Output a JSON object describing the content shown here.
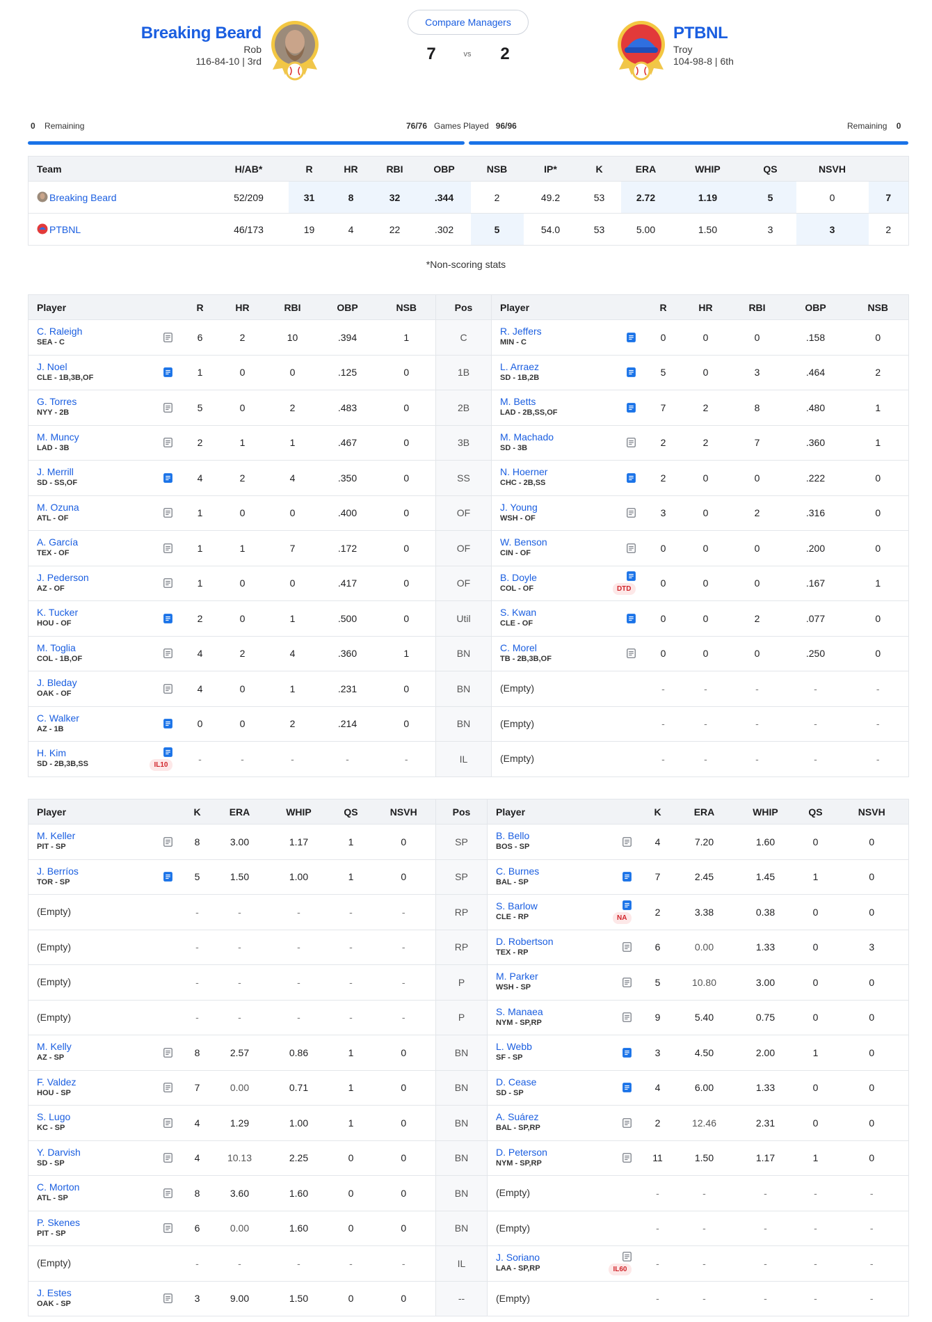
{
  "header": {
    "compare_label": "Compare Managers",
    "vs_label": "vs",
    "left": {
      "name": "Breaking Beard",
      "manager": "Rob",
      "record": "116-84-10 | 3rd",
      "score": "7"
    },
    "right": {
      "name": "PTBNL",
      "manager": "Troy",
      "record": "104-98-8 | 6th",
      "score": "2"
    }
  },
  "games": {
    "left_remaining_count": "0",
    "left_remaining_label": "Remaining",
    "left_played": "76/76",
    "games_played_label": "Games Played",
    "right_played": "96/96",
    "right_remaining_label": "Remaining",
    "right_remaining_count": "0"
  },
  "summary": {
    "headers": [
      "Team",
      "H/AB*",
      "R",
      "HR",
      "RBI",
      "OBP",
      "NSB",
      "IP*",
      "K",
      "ERA",
      "WHIP",
      "QS",
      "NSVH",
      ""
    ],
    "rows": [
      {
        "team": "Breaking Beard",
        "vals": [
          "52/209",
          "31",
          "8",
          "32",
          ".344",
          "2",
          "49.2",
          "53",
          "2.72",
          "1.19",
          "5",
          "0",
          "7"
        ],
        "hl": [
          1,
          2,
          3,
          4,
          8,
          9,
          10,
          12
        ]
      },
      {
        "team": "PTBNL",
        "vals": [
          "46/173",
          "19",
          "4",
          "22",
          ".302",
          "5",
          "54.0",
          "53",
          "5.00",
          "1.50",
          "3",
          "3",
          "2"
        ],
        "hl": [
          5,
          11
        ]
      }
    ],
    "note": "*Non-scoring stats"
  },
  "batting": {
    "headers_left": [
      "Player",
      "R",
      "HR",
      "RBI",
      "OBP",
      "NSB"
    ],
    "pos_header": "Pos",
    "headers_right": [
      "Player",
      "R",
      "HR",
      "RBI",
      "OBP",
      "NSB"
    ],
    "rows": [
      {
        "pos": "C",
        "l": {
          "name": "C. Raleigh",
          "team": "SEA - C",
          "note": "gray",
          "s": [
            "6",
            "2",
            "10",
            ".394",
            "1"
          ]
        },
        "r": {
          "name": "R. Jeffers",
          "team": "MIN - C",
          "note": "blue",
          "s": [
            "0",
            "0",
            "0",
            ".158",
            "0"
          ]
        }
      },
      {
        "pos": "1B",
        "l": {
          "name": "J. Noel",
          "team": "CLE - 1B,3B,OF",
          "note": "blue",
          "s": [
            "1",
            "0",
            "0",
            ".125",
            "0"
          ]
        },
        "r": {
          "name": "L. Arraez",
          "team": "SD - 1B,2B",
          "note": "blue",
          "s": [
            "5",
            "0",
            "3",
            ".464",
            "2"
          ]
        }
      },
      {
        "pos": "2B",
        "l": {
          "name": "G. Torres",
          "team": "NYY - 2B",
          "note": "gray",
          "s": [
            "5",
            "0",
            "2",
            ".483",
            "0"
          ]
        },
        "r": {
          "name": "M. Betts",
          "team": "LAD - 2B,SS,OF",
          "note": "blue",
          "s": [
            "7",
            "2",
            "8",
            ".480",
            "1"
          ]
        }
      },
      {
        "pos": "3B",
        "l": {
          "name": "M. Muncy",
          "team": "LAD - 3B",
          "note": "gray",
          "s": [
            "2",
            "1",
            "1",
            ".467",
            "0"
          ]
        },
        "r": {
          "name": "M. Machado",
          "team": "SD - 3B",
          "note": "gray",
          "s": [
            "2",
            "2",
            "7",
            ".360",
            "1"
          ]
        }
      },
      {
        "pos": "SS",
        "l": {
          "name": "J. Merrill",
          "team": "SD - SS,OF",
          "note": "blue",
          "s": [
            "4",
            "2",
            "4",
            ".350",
            "0"
          ]
        },
        "r": {
          "name": "N. Hoerner",
          "team": "CHC - 2B,SS",
          "note": "blue",
          "s": [
            "2",
            "0",
            "0",
            ".222",
            "0"
          ]
        }
      },
      {
        "pos": "OF",
        "l": {
          "name": "M. Ozuna",
          "team": "ATL - OF",
          "note": "gray",
          "s": [
            "1",
            "0",
            "0",
            ".400",
            "0"
          ]
        },
        "r": {
          "name": "J. Young",
          "team": "WSH - OF",
          "note": "gray",
          "s": [
            "3",
            "0",
            "2",
            ".316",
            "0"
          ]
        }
      },
      {
        "pos": "OF",
        "l": {
          "name": "A. García",
          "team": "TEX - OF",
          "note": "gray",
          "s": [
            "1",
            "1",
            "7",
            ".172",
            "0"
          ]
        },
        "r": {
          "name": "W. Benson",
          "team": "CIN - OF",
          "note": "gray",
          "s": [
            "0",
            "0",
            "0",
            ".200",
            "0"
          ]
        }
      },
      {
        "pos": "OF",
        "l": {
          "name": "J. Pederson",
          "team": "AZ - OF",
          "note": "gray",
          "s": [
            "1",
            "0",
            "0",
            ".417",
            "0"
          ]
        },
        "r": {
          "name": "B. Doyle",
          "team": "COL - OF",
          "note": "blue",
          "badge": "DTD",
          "s": [
            "0",
            "0",
            "0",
            ".167",
            "1"
          ]
        }
      },
      {
        "pos": "Util",
        "l": {
          "name": "K. Tucker",
          "team": "HOU - OF",
          "note": "blue",
          "s": [
            "2",
            "0",
            "1",
            ".500",
            "0"
          ]
        },
        "r": {
          "name": "S. Kwan",
          "team": "CLE - OF",
          "note": "blue",
          "s": [
            "0",
            "0",
            "2",
            ".077",
            "0"
          ]
        }
      },
      {
        "pos": "BN",
        "l": {
          "name": "M. Toglia",
          "team": "COL - 1B,OF",
          "note": "gray",
          "s": [
            "4",
            "2",
            "4",
            ".360",
            "1"
          ]
        },
        "r": {
          "name": "C. Morel",
          "team": "TB - 2B,3B,OF",
          "note": "gray",
          "s": [
            "0",
            "0",
            "0",
            ".250",
            "0"
          ]
        }
      },
      {
        "pos": "BN",
        "l": {
          "name": "J. Bleday",
          "team": "OAK - OF",
          "note": "gray",
          "s": [
            "4",
            "0",
            "1",
            ".231",
            "0"
          ]
        },
        "r": {
          "empty": "(Empty)",
          "s": [
            "-",
            "-",
            "-",
            "-",
            "-"
          ]
        }
      },
      {
        "pos": "BN",
        "l": {
          "name": "C. Walker",
          "team": "AZ - 1B",
          "note": "blue",
          "s": [
            "0",
            "0",
            "2",
            ".214",
            "0"
          ]
        },
        "r": {
          "empty": "(Empty)",
          "s": [
            "-",
            "-",
            "-",
            "-",
            "-"
          ]
        }
      },
      {
        "pos": "IL",
        "l": {
          "name": "H. Kim",
          "team": "SD - 2B,3B,SS",
          "note": "blue",
          "badge": "IL10",
          "s": [
            "-",
            "-",
            "-",
            "-",
            "-"
          ]
        },
        "r": {
          "empty": "(Empty)",
          "s": [
            "-",
            "-",
            "-",
            "-",
            "-"
          ]
        }
      }
    ]
  },
  "pitching": {
    "headers_left": [
      "Player",
      "K",
      "ERA",
      "WHIP",
      "QS",
      "NSVH"
    ],
    "pos_header": "Pos",
    "headers_right": [
      "Player",
      "K",
      "ERA",
      "WHIP",
      "QS",
      "NSVH"
    ],
    "rows": [
      {
        "pos": "SP",
        "l": {
          "name": "M. Keller",
          "team": "PIT - SP",
          "note": "gray",
          "s": [
            "8",
            "3.00",
            "1.17",
            "1",
            "0"
          ]
        },
        "r": {
          "name": "B. Bello",
          "team": "BOS - SP",
          "note": "gray",
          "s": [
            "4",
            "7.20",
            "1.60",
            "0",
            "0"
          ]
        }
      },
      {
        "pos": "SP",
        "l": {
          "name": "J. Berríos",
          "team": "TOR - SP",
          "note": "blue",
          "s": [
            "5",
            "1.50",
            "1.00",
            "1",
            "0"
          ]
        },
        "r": {
          "name": "C. Burnes",
          "team": "BAL - SP",
          "note": "blue",
          "s": [
            "7",
            "2.45",
            "1.45",
            "1",
            "0"
          ]
        }
      },
      {
        "pos": "RP",
        "l": {
          "empty": "(Empty)",
          "s": [
            "-",
            "-",
            "-",
            "-",
            "-"
          ]
        },
        "r": {
          "name": "S. Barlow",
          "team": "CLE - RP",
          "note": "blue",
          "badge": "NA",
          "s": [
            "2",
            "3.38",
            "0.38",
            "0",
            "0"
          ]
        }
      },
      {
        "pos": "RP",
        "l": {
          "empty": "(Empty)",
          "s": [
            "-",
            "-",
            "-",
            "-",
            "-"
          ]
        },
        "r": {
          "name": "D. Robertson",
          "team": "TEX - RP",
          "note": "gray",
          "s": [
            "6",
            "0.00",
            "1.33",
            "0",
            "3"
          ]
        }
      },
      {
        "pos": "P",
        "l": {
          "empty": "(Empty)",
          "s": [
            "-",
            "-",
            "-",
            "-",
            "-"
          ]
        },
        "r": {
          "name": "M. Parker",
          "team": "WSH - SP",
          "note": "gray",
          "s": [
            "5",
            "10.80",
            "3.00",
            "0",
            "0"
          ]
        }
      },
      {
        "pos": "P",
        "l": {
          "empty": "(Empty)",
          "s": [
            "-",
            "-",
            "-",
            "-",
            "-"
          ]
        },
        "r": {
          "name": "S. Manaea",
          "team": "NYM - SP,RP",
          "note": "gray",
          "s": [
            "9",
            "5.40",
            "0.75",
            "0",
            "0"
          ]
        }
      },
      {
        "pos": "BN",
        "l": {
          "name": "M. Kelly",
          "team": "AZ - SP",
          "note": "gray",
          "s": [
            "8",
            "2.57",
            "0.86",
            "1",
            "0"
          ]
        },
        "r": {
          "name": "L. Webb",
          "team": "SF - SP",
          "note": "blue",
          "s": [
            "3",
            "4.50",
            "2.00",
            "1",
            "0"
          ]
        }
      },
      {
        "pos": "BN",
        "l": {
          "name": "F. Valdez",
          "team": "HOU - SP",
          "note": "gray",
          "s": [
            "7",
            "0.00",
            "0.71",
            "1",
            "0"
          ]
        },
        "r": {
          "name": "D. Cease",
          "team": "SD - SP",
          "note": "blue",
          "s": [
            "4",
            "6.00",
            "1.33",
            "0",
            "0"
          ]
        }
      },
      {
        "pos": "BN",
        "l": {
          "name": "S. Lugo",
          "team": "KC - SP",
          "note": "gray",
          "s": [
            "4",
            "1.29",
            "1.00",
            "1",
            "0"
          ]
        },
        "r": {
          "name": "A. Suárez",
          "team": "BAL - SP,RP",
          "note": "gray",
          "s": [
            "2",
            "12.46",
            "2.31",
            "0",
            "0"
          ]
        }
      },
      {
        "pos": "BN",
        "l": {
          "name": "Y. Darvish",
          "team": "SD - SP",
          "note": "gray",
          "s": [
            "4",
            "10.13",
            "2.25",
            "0",
            "0"
          ]
        },
        "r": {
          "name": "D. Peterson",
          "team": "NYM - SP,RP",
          "note": "gray",
          "s": [
            "11",
            "1.50",
            "1.17",
            "1",
            "0"
          ]
        }
      },
      {
        "pos": "BN",
        "l": {
          "name": "C. Morton",
          "team": "ATL - SP",
          "note": "gray",
          "s": [
            "8",
            "3.60",
            "1.60",
            "0",
            "0"
          ]
        },
        "r": {
          "empty": "(Empty)",
          "s": [
            "-",
            "-",
            "-",
            "-",
            "-"
          ]
        }
      },
      {
        "pos": "BN",
        "l": {
          "name": "P. Skenes",
          "team": "PIT - SP",
          "note": "gray",
          "s": [
            "6",
            "0.00",
            "1.60",
            "0",
            "0"
          ]
        },
        "r": {
          "empty": "(Empty)",
          "s": [
            "-",
            "-",
            "-",
            "-",
            "-"
          ]
        }
      },
      {
        "pos": "IL",
        "l": {
          "empty": "(Empty)",
          "s": [
            "-",
            "-",
            "-",
            "-",
            "-"
          ]
        },
        "r": {
          "name": "J. Soriano",
          "team": "LAA - SP,RP",
          "note": "gray",
          "badge": "IL60",
          "s": [
            "-",
            "-",
            "-",
            "-",
            "-"
          ]
        }
      },
      {
        "pos": "--",
        "l": {
          "name": "J. Estes",
          "team": "OAK - SP",
          "note": "gray",
          "s": [
            "3",
            "9.00",
            "1.50",
            "0",
            "0"
          ]
        },
        "r": {
          "empty": "(Empty)",
          "s": [
            "-",
            "-",
            "-",
            "-",
            "-"
          ]
        }
      }
    ]
  },
  "colors": {
    "accent": "#1a5ee0",
    "bar": "#1a73e8",
    "highlight": "#eef5fd",
    "badge": "#d1252b"
  }
}
